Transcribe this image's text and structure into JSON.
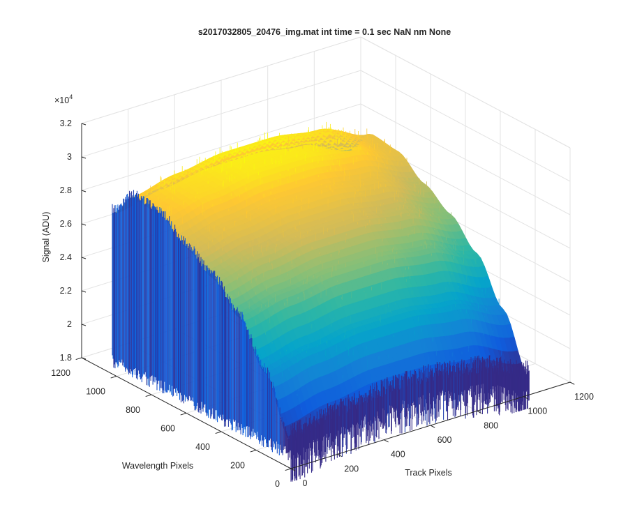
{
  "chart_data": {
    "type": "surface",
    "title": "s2017032805_20476_img.mat int time = 0.1 sec  NaN nm None",
    "xlabel": "Track Pixels",
    "ylabel": "Wavelength Pixels",
    "zlabel": "Signal (ADU)",
    "z_exponent_label": "×10",
    "z_exponent_power": "4",
    "xlim": [
      0,
      1200
    ],
    "ylim": [
      0,
      1200
    ],
    "zlim": [
      18000,
      32000
    ],
    "x_ticks": [
      {
        "value": 0,
        "label": "0"
      },
      {
        "value": 200,
        "label": "200"
      },
      {
        "value": 400,
        "label": "400"
      },
      {
        "value": 600,
        "label": "600"
      },
      {
        "value": 800,
        "label": "800"
      },
      {
        "value": 1000,
        "label": "1000"
      },
      {
        "value": 1200,
        "label": "1200"
      }
    ],
    "y_ticks": [
      {
        "value": 0,
        "label": "0"
      },
      {
        "value": 200,
        "label": "200"
      },
      {
        "value": 400,
        "label": "400"
      },
      {
        "value": 600,
        "label": "600"
      },
      {
        "value": 800,
        "label": "800"
      },
      {
        "value": 1000,
        "label": "1000"
      },
      {
        "value": 1200,
        "label": "1200"
      }
    ],
    "z_ticks": [
      {
        "value": 18000,
        "label": "1.8"
      },
      {
        "value": 20000,
        "label": "2"
      },
      {
        "value": 22000,
        "label": "2.2"
      },
      {
        "value": 24000,
        "label": "2.4"
      },
      {
        "value": 26000,
        "label": "2.6"
      },
      {
        "value": 28000,
        "label": "2.8"
      },
      {
        "value": 30000,
        "label": "3"
      },
      {
        "value": 32000,
        "label": "3.2"
      }
    ],
    "grid": true,
    "colormap": "parula",
    "colormap_colors": [
      "#352a87",
      "#0f5cdd",
      "#1481d6",
      "#06a4ca",
      "#2eb7a4",
      "#87bf77",
      "#d1bb59",
      "#fec832",
      "#f9fb0e"
    ],
    "surface": {
      "x_extent": [
        0,
        1024
      ],
      "y_extent": [
        0,
        1024
      ],
      "wavelength_profile": {
        "y": [
          0,
          150,
          300,
          450,
          600,
          750,
          900,
          1024
        ],
        "signal": [
          20200,
          23500,
          26000,
          27500,
          28500,
          29600,
          29800,
          28200
        ]
      },
      "track_profile": {
        "x": [
          0,
          200,
          400,
          600,
          800,
          1024
        ],
        "offset": [
          -600,
          0,
          400,
          400,
          0,
          -1200
        ]
      },
      "noise_amplitude": 1400
    }
  }
}
